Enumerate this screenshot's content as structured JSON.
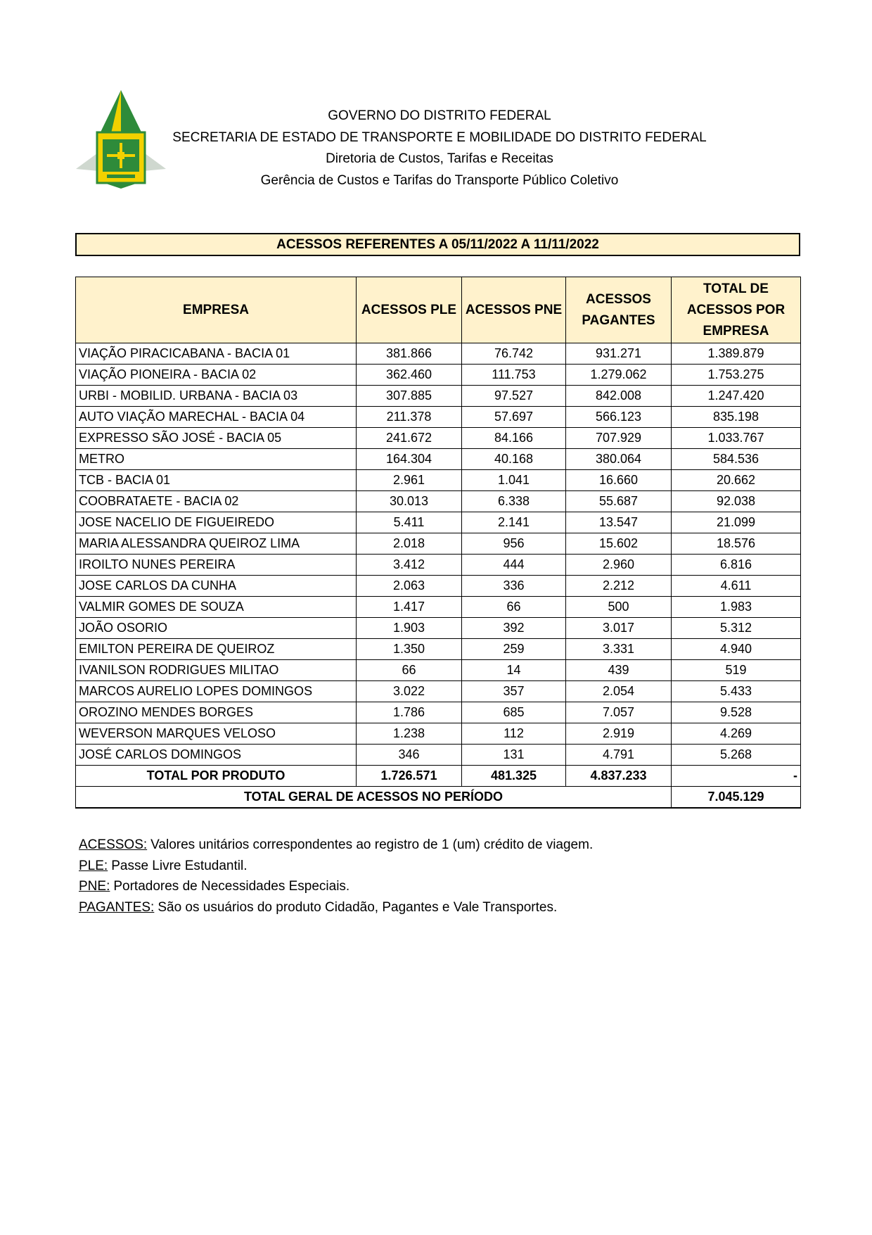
{
  "header": {
    "lines": [
      "GOVERNO DO DISTRITO FEDERAL",
      "SECRETARIA DE ESTADO DE TRANSPORTE E MOBILIDADE DO DISTRITO FEDERAL",
      "Diretoria de Custos, Tarifas e Receitas",
      "Gerência de Custos e Tarifas do Transporte Público Coletivo"
    ]
  },
  "title": "ACESSOS REFERENTES A 05/11/2022 A 11/11/2022",
  "table": {
    "columns": [
      "EMPRESA",
      "ACESSOS PLE",
      "ACESSOS PNE",
      "ACESSOS PAGANTES",
      "TOTAL DE ACESSOS POR EMPRESA"
    ],
    "rows": [
      [
        "VIAÇÃO PIRACICABANA - BACIA 01",
        "381.866",
        "76.742",
        "931.271",
        "1.389.879"
      ],
      [
        "VIAÇÃO PIONEIRA - BACIA 02",
        "362.460",
        "111.753",
        "1.279.062",
        "1.753.275"
      ],
      [
        "URBI - MOBILID. URBANA - BACIA 03",
        "307.885",
        "97.527",
        "842.008",
        "1.247.420"
      ],
      [
        "AUTO VIAÇÃO MARECHAL - BACIA 04",
        "211.378",
        "57.697",
        "566.123",
        "835.198"
      ],
      [
        "EXPRESSO SÃO JOSÉ - BACIA 05",
        "241.672",
        "84.166",
        "707.929",
        "1.033.767"
      ],
      [
        "METRO",
        "164.304",
        "40.168",
        "380.064",
        "584.536"
      ],
      [
        "TCB - BACIA 01",
        "2.961",
        "1.041",
        "16.660",
        "20.662"
      ],
      [
        "COOBRATAETE - BACIA 02",
        "30.013",
        "6.338",
        "55.687",
        "92.038"
      ],
      [
        "JOSE NACELIO DE FIGUEIREDO",
        "5.411",
        "2.141",
        "13.547",
        "21.099"
      ],
      [
        "MARIA ALESSANDRA QUEIROZ LIMA",
        "2.018",
        "956",
        "15.602",
        "18.576"
      ],
      [
        "IROILTO NUNES PEREIRA",
        "3.412",
        "444",
        "2.960",
        "6.816"
      ],
      [
        "JOSE CARLOS DA CUNHA",
        "2.063",
        "336",
        "2.212",
        "4.611"
      ],
      [
        "VALMIR GOMES DE SOUZA",
        "1.417",
        "66",
        "500",
        "1.983"
      ],
      [
        "JOÃO OSORIO",
        "1.903",
        "392",
        "3.017",
        "5.312"
      ],
      [
        "EMILTON PEREIRA DE QUEIROZ",
        "1.350",
        "259",
        "3.331",
        "4.940"
      ],
      [
        "IVANILSON RODRIGUES MILITAO",
        "66",
        "14",
        "439",
        "519"
      ],
      [
        "MARCOS AURELIO LOPES DOMINGOS",
        "3.022",
        "357",
        "2.054",
        "5.433"
      ],
      [
        "OROZINO MENDES BORGES",
        "1.786",
        "685",
        "7.057",
        "9.528"
      ],
      [
        "WEVERSON MARQUES VELOSO",
        "1.238",
        "112",
        "2.919",
        "4.269"
      ],
      [
        "JOSÉ CARLOS DOMINGOS",
        "346",
        "131",
        "4.791",
        "5.268"
      ]
    ],
    "total_row": [
      "TOTAL POR PRODUTO",
      "1.726.571",
      "481.325",
      "4.837.233",
      "-"
    ],
    "grand_total": {
      "label": "TOTAL GERAL DE ACESSOS NO PERÍODO",
      "value": "7.045.129"
    }
  },
  "notes": [
    {
      "term": "ACESSOS:",
      "text": "Valores unitários correspondentes ao registro de 1 (um) crédito de viagem."
    },
    {
      "term": "PLE:",
      "text": "Passe Livre Estudantil."
    },
    {
      "term": "PNE:",
      "text": "Portadores de Necessidades Especiais."
    },
    {
      "term": "PAGANTES:",
      "text": "São os usuários do produto Cidadão, Pagantes e Vale Transportes."
    }
  ]
}
